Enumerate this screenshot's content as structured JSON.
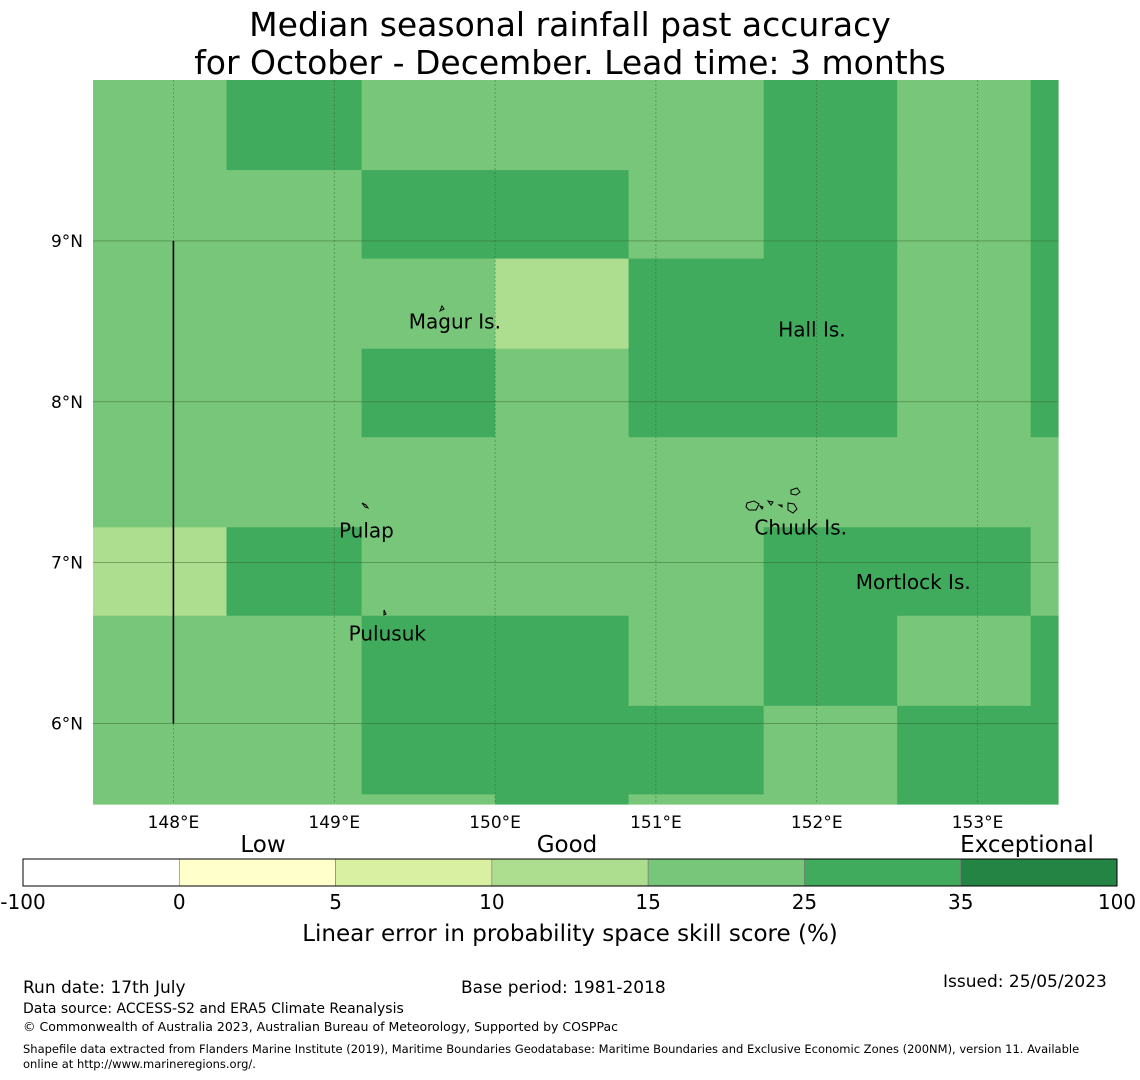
{
  "title": {
    "line1": "Median seasonal rainfall past accuracy",
    "line2": "for October - December. Lead time: 3 months"
  },
  "map": {
    "lon_range": [
      147.5,
      153.5
    ],
    "lat_range": [
      5.5,
      10.0
    ],
    "lon_ticks": [
      148,
      149,
      150,
      151,
      152,
      153
    ],
    "lat_ticks": [
      6,
      7,
      8,
      9
    ],
    "lon_tick_labels": [
      "148°E",
      "149°E",
      "150°E",
      "151°E",
      "152°E",
      "153°E"
    ],
    "lat_tick_labels": [
      "6°N",
      "7°N",
      "8°N",
      "9°N"
    ],
    "skill_grid": {
      "lon_edges": [
        147.5,
        148.33,
        149.17,
        150.0,
        150.83,
        151.67,
        152.5,
        153.33,
        153.5
      ],
      "lat_edges": [
        10.0,
        9.44,
        8.89,
        8.33,
        7.78,
        7.22,
        6.67,
        6.11,
        5.56,
        5.5
      ],
      "rows": [
        [
          3,
          4,
          3,
          3,
          3,
          4,
          3,
          4
        ],
        [
          3,
          3,
          4,
          4,
          3,
          4,
          3,
          4
        ],
        [
          3,
          3,
          3,
          2,
          4,
          4,
          3,
          4
        ],
        [
          3,
          3,
          4,
          3,
          4,
          4,
          3,
          4
        ],
        [
          3,
          3,
          3,
          3,
          3,
          3,
          3,
          3
        ],
        [
          2,
          4,
          3,
          3,
          3,
          4,
          4,
          3
        ],
        [
          3,
          3,
          4,
          4,
          3,
          4,
          3,
          4
        ],
        [
          3,
          3,
          4,
          4,
          4,
          3,
          4,
          4
        ],
        [
          3,
          3,
          3,
          4,
          3,
          3,
          4,
          4
        ]
      ]
    },
    "places": [
      {
        "name": "Magur Is.",
        "lon": 149.75,
        "lat": 8.5
      },
      {
        "name": "Hall Is.",
        "lon": 151.97,
        "lat": 8.45
      },
      {
        "name": "Pulap",
        "lon": 149.2,
        "lat": 7.2
      },
      {
        "name": "Chuuk Is.",
        "lon": 151.9,
        "lat": 7.22
      },
      {
        "name": "Mortlock Is.",
        "lon": 152.6,
        "lat": 6.88
      },
      {
        "name": "Pulusuk",
        "lon": 149.33,
        "lat": 6.56
      }
    ],
    "eez_line": {
      "lon": 148.0,
      "lat_from": 6.0,
      "lat_to": 9.0
    }
  },
  "colorbar": {
    "category_labels": [
      "Low",
      "Good",
      "Exceptional"
    ],
    "bounds": [
      "-100",
      "0",
      "5",
      "10",
      "15",
      "25",
      "35",
      "100"
    ],
    "colors": [
      "#ffffff",
      "#ffffcc",
      "#d9f0a3",
      "#addd8e",
      "#78c679",
      "#41ab5d",
      "#238443"
    ],
    "label": "Linear error in probability space skill score (%)"
  },
  "footer": {
    "run_date": "Run date: 17th July",
    "base_period": "Base period: 1981-2018",
    "issued": "Issued: 25/05/2023",
    "data_source": "Data source: ACCESS-S2 and ERA5 Climate Reanalysis",
    "copyright": "© Commonwealth of Australia 2023, Australian Bureau of Meteorology, Supported by COSPPac",
    "shapefile_line1": "Shapefile data extracted from Flanders Marine Institute (2019), Maritime Boundaries Geodatabase: Maritime Boundaries and Exclusive Economic Zones (200NM), version 11. Available",
    "shapefile_line2": "online at http://www.marineregions.org/."
  }
}
